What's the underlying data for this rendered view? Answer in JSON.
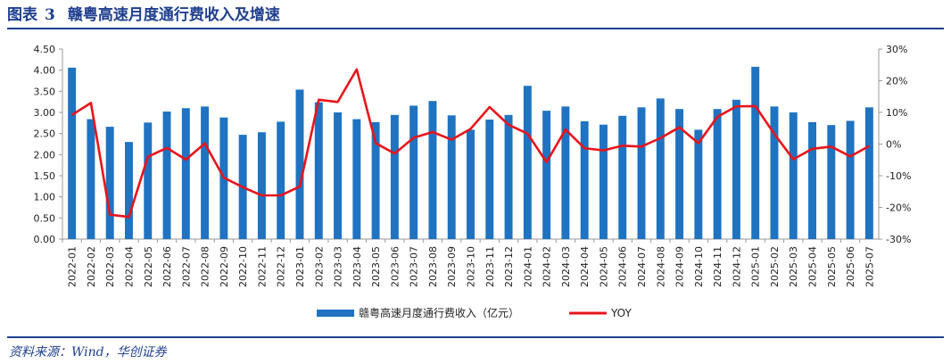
{
  "header": {
    "prefix": "图表",
    "number": "3",
    "title": "赣粤高速月度通行费收入及增速"
  },
  "source": "资料来源：Wind，华创证券",
  "chart_data": {
    "type": "bar+line",
    "categories": [
      "2022-01",
      "2022-02",
      "2022-03",
      "2022-04",
      "2022-05",
      "2022-06",
      "2022-07",
      "2022-08",
      "2022-09",
      "2022-10",
      "2022-11",
      "2022-12",
      "2023-01",
      "2023-02",
      "2023-03",
      "2023-04",
      "2023-05",
      "2023-06",
      "2023-07",
      "2023-08",
      "2023-09",
      "2023-10",
      "2023-11",
      "2023-12",
      "2024-01",
      "2024-02",
      "2024-03",
      "2024-04",
      "2024-05",
      "2024-06",
      "2024-07",
      "2024-08",
      "2024-09",
      "2024-10",
      "2024-11",
      "2024-12",
      "2025-01",
      "2025-02",
      "2025-03",
      "2025-04",
      "2025-05",
      "2025-06",
      "2025-07"
    ],
    "series": [
      {
        "name": "赣粤高速月度通行费收入（亿元）",
        "type": "bar",
        "axis": "left",
        "color": "#1f73c1",
        "values": [
          4.06,
          2.84,
          2.66,
          2.3,
          2.76,
          3.02,
          3.1,
          3.14,
          2.88,
          2.47,
          2.53,
          2.78,
          3.54,
          3.24,
          3.0,
          2.84,
          2.77,
          2.94,
          3.16,
          3.27,
          2.93,
          2.59,
          2.83,
          2.94,
          3.63,
          3.04,
          3.14,
          2.79,
          2.71,
          2.92,
          3.12,
          3.33,
          3.08,
          2.59,
          3.08,
          3.3,
          4.08,
          3.14,
          3.0,
          2.77,
          2.7,
          2.8,
          3.12
        ]
      },
      {
        "name": "YOY",
        "type": "line",
        "axis": "right",
        "color": "#e8141b",
        "values": [
          9.2,
          13.0,
          -22.3,
          -23.0,
          -4.0,
          -1.2,
          -4.9,
          0.2,
          -10.6,
          -13.6,
          -16.2,
          -16.2,
          -13.4,
          14.0,
          13.3,
          23.6,
          0.3,
          -3.0,
          2.0,
          3.8,
          1.4,
          4.8,
          11.7,
          6.1,
          3.3,
          -5.7,
          4.6,
          -1.3,
          -2.0,
          -0.5,
          -0.8,
          1.9,
          5.3,
          0.3,
          8.6,
          11.9,
          12.0,
          3.2,
          -4.8,
          -1.5,
          -0.8,
          -3.9,
          -0.6
        ]
      }
    ],
    "left_axis": {
      "ylim": [
        0,
        4.5
      ],
      "ticks": [
        "0.00",
        "0.50",
        "1.00",
        "1.50",
        "2.00",
        "2.50",
        "3.00",
        "3.50",
        "4.00",
        "4.50"
      ]
    },
    "right_axis": {
      "ylim": [
        -30,
        30
      ],
      "ticks": [
        "-30%",
        "-20%",
        "-10%",
        "0%",
        "10%",
        "20%",
        "30%"
      ]
    },
    "legend": {
      "position": "bottom-center"
    }
  }
}
